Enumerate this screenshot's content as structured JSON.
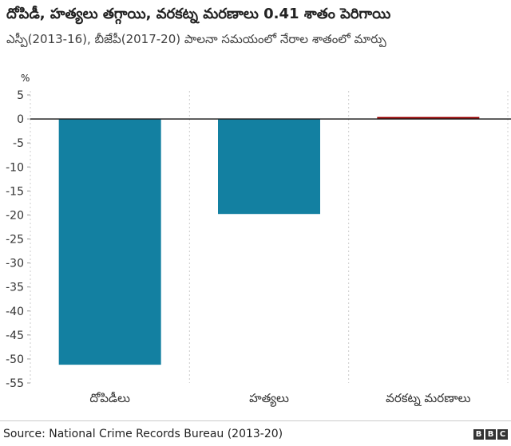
{
  "chart_data": {
    "type": "bar",
    "title": "దోపిడీ, హత్యలు తగ్గాయి, వరకట్న మరణాలు 0.41 శాతం పెరిగాయి",
    "subtitle": "ఎస్పీ(2013-16), బీజేపీ(2017-20) పాలనా సమయంలో నేరాల శాతంలో మార్పు",
    "ylabel": "%",
    "ylim": [
      -55,
      5
    ],
    "yticks": [
      5,
      0,
      -5,
      -10,
      -15,
      -20,
      -25,
      -30,
      -35,
      -40,
      -45,
      -50,
      -55
    ],
    "categories": [
      "దోపిడీలు",
      "హత్యలు",
      "వరకట్న మరణాలు"
    ],
    "values": [
      -51.2,
      -19.8,
      0.41
    ],
    "colors": [
      "#1380A1",
      "#1380A1",
      "#990000"
    ],
    "grid": "vertical-dashed",
    "legend": "none"
  },
  "footer": {
    "source": "Source: National Crime Records Bureau (2013-20)",
    "logo_letters": [
      "B",
      "B",
      "C"
    ]
  }
}
